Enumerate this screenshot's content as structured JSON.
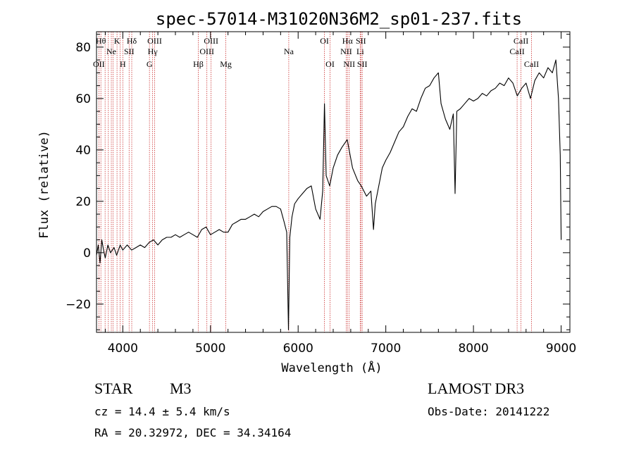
{
  "chart_data": {
    "type": "line",
    "title": "spec-57014-M31020N36M2_sp01-237.fits",
    "xlabel": "Wavelength (Å)",
    "ylabel": "Flux (relative)",
    "xlim": [
      3700,
      9100
    ],
    "ylim": [
      -31,
      86
    ],
    "xticks": [
      4000,
      5000,
      6000,
      7000,
      8000,
      9000
    ],
    "yticks": [
      -20,
      0,
      20,
      40,
      60,
      80
    ],
    "tick_labels": {
      "x": [
        "4000",
        "5000",
        "6000",
        "7000",
        "8000",
        "9000"
      ],
      "y": [
        "−20",
        "0",
        "20",
        "40",
        "60",
        "80"
      ]
    },
    "grid": false,
    "legend": "none",
    "colors": {
      "spectrum": "#000000",
      "lines": "#cc3333",
      "axes": "#000000"
    },
    "series": [
      {
        "values": [
          [
            3700,
            -1
          ],
          [
            3720,
            3
          ],
          [
            3740,
            -4
          ],
          [
            3760,
            5
          ],
          [
            3780,
            1
          ],
          [
            3800,
            -2
          ],
          [
            3830,
            3
          ],
          [
            3860,
            0
          ],
          [
            3900,
            2
          ],
          [
            3930,
            -1
          ],
          [
            3970,
            3
          ],
          [
            4000,
            1
          ],
          [
            4050,
            3
          ],
          [
            4100,
            1
          ],
          [
            4150,
            2
          ],
          [
            4200,
            3
          ],
          [
            4250,
            2
          ],
          [
            4300,
            4
          ],
          [
            4350,
            5
          ],
          [
            4400,
            3
          ],
          [
            4450,
            5
          ],
          [
            4500,
            6
          ],
          [
            4550,
            6
          ],
          [
            4600,
            7
          ],
          [
            4650,
            6
          ],
          [
            4700,
            7
          ],
          [
            4750,
            8
          ],
          [
            4800,
            7
          ],
          [
            4850,
            6
          ],
          [
            4900,
            9
          ],
          [
            4950,
            10
          ],
          [
            5000,
            7
          ],
          [
            5050,
            8
          ],
          [
            5100,
            9
          ],
          [
            5150,
            8
          ],
          [
            5200,
            8
          ],
          [
            5250,
            11
          ],
          [
            5300,
            12
          ],
          [
            5350,
            13
          ],
          [
            5400,
            13
          ],
          [
            5450,
            14
          ],
          [
            5500,
            15
          ],
          [
            5550,
            14
          ],
          [
            5600,
            16
          ],
          [
            5650,
            17
          ],
          [
            5700,
            18
          ],
          [
            5750,
            18
          ],
          [
            5800,
            17
          ],
          [
            5840,
            12
          ],
          [
            5870,
            8
          ],
          [
            5890,
            -30
          ],
          [
            5905,
            6
          ],
          [
            5930,
            14
          ],
          [
            5960,
            19
          ],
          [
            6000,
            21
          ],
          [
            6050,
            23
          ],
          [
            6100,
            25
          ],
          [
            6150,
            26
          ],
          [
            6200,
            17
          ],
          [
            6250,
            13
          ],
          [
            6280,
            24
          ],
          [
            6300,
            58
          ],
          [
            6320,
            30
          ],
          [
            6360,
            26
          ],
          [
            6400,
            33
          ],
          [
            6450,
            38
          ],
          [
            6500,
            41
          ],
          [
            6560,
            44
          ],
          [
            6620,
            33
          ],
          [
            6680,
            28
          ],
          [
            6720,
            26
          ],
          [
            6780,
            22
          ],
          [
            6830,
            24
          ],
          [
            6860,
            9
          ],
          [
            6880,
            19
          ],
          [
            6920,
            26
          ],
          [
            6960,
            33
          ],
          [
            7000,
            36
          ],
          [
            7050,
            39
          ],
          [
            7100,
            43
          ],
          [
            7150,
            47
          ],
          [
            7200,
            49
          ],
          [
            7250,
            53
          ],
          [
            7300,
            56
          ],
          [
            7350,
            55
          ],
          [
            7400,
            60
          ],
          [
            7450,
            64
          ],
          [
            7500,
            65
          ],
          [
            7550,
            68
          ],
          [
            7600,
            70
          ],
          [
            7630,
            58
          ],
          [
            7680,
            52
          ],
          [
            7730,
            48
          ],
          [
            7770,
            54
          ],
          [
            7790,
            23
          ],
          [
            7810,
            55
          ],
          [
            7850,
            56
          ],
          [
            7900,
            58
          ],
          [
            7950,
            60
          ],
          [
            8000,
            59
          ],
          [
            8050,
            60
          ],
          [
            8100,
            62
          ],
          [
            8150,
            61
          ],
          [
            8200,
            63
          ],
          [
            8250,
            64
          ],
          [
            8300,
            66
          ],
          [
            8350,
            65
          ],
          [
            8400,
            68
          ],
          [
            8450,
            66
          ],
          [
            8500,
            61
          ],
          [
            8550,
            64
          ],
          [
            8600,
            66
          ],
          [
            8650,
            60
          ],
          [
            8700,
            67
          ],
          [
            8750,
            70
          ],
          [
            8800,
            68
          ],
          [
            8850,
            72
          ],
          [
            8900,
            70
          ],
          [
            8940,
            75
          ],
          [
            8970,
            60
          ],
          [
            8990,
            38
          ],
          [
            9000,
            5
          ]
        ]
      }
    ],
    "lines": [
      {
        "wl": 3727,
        "label": "OII",
        "row": 3
      },
      {
        "wl": 3750,
        "label": "Hθ",
        "row": 1
      },
      {
        "wl": 3798,
        "label": "",
        "row": 0
      },
      {
        "wl": 3835,
        "label": "",
        "row": 0
      },
      {
        "wl": 3869,
        "label": "Ne",
        "row": 2
      },
      {
        "wl": 3889,
        "label": "",
        "row": 0
      },
      {
        "wl": 3934,
        "label": "K",
        "row": 1
      },
      {
        "wl": 3970,
        "label": "",
        "row": 0
      },
      {
        "wl": 4000,
        "label": "H",
        "row": 3
      },
      {
        "wl": 4072,
        "label": "SII",
        "row": 2
      },
      {
        "wl": 4102,
        "label": "Hδ",
        "row": 1
      },
      {
        "wl": 4304,
        "label": "G",
        "row": 3
      },
      {
        "wl": 4340,
        "label": "Hγ",
        "row": 2
      },
      {
        "wl": 4363,
        "label": "OIII",
        "row": 1
      },
      {
        "wl": 4861,
        "label": "Hβ",
        "row": 3
      },
      {
        "wl": 4959,
        "label": "OIII",
        "row": 2
      },
      {
        "wl": 5007,
        "label": "OIII",
        "row": 1
      },
      {
        "wl": 5175,
        "label": "Mg",
        "row": 3
      },
      {
        "wl": 5893,
        "label": "Na",
        "row": 2
      },
      {
        "wl": 6300,
        "label": "OI",
        "row": 1
      },
      {
        "wl": 6364,
        "label": "OI",
        "row": 3
      },
      {
        "wl": 6548,
        "label": "NII",
        "row": 2
      },
      {
        "wl": 6563,
        "label": "Hα",
        "row": 1
      },
      {
        "wl": 6583,
        "label": "NII",
        "row": 3
      },
      {
        "wl": 6708,
        "label": "Li",
        "row": 2
      },
      {
        "wl": 6716,
        "label": "SII",
        "row": 1
      },
      {
        "wl": 6731,
        "label": "SII",
        "row": 3
      },
      {
        "wl": 8498,
        "label": "CaII",
        "row": 2
      },
      {
        "wl": 8542,
        "label": "CaII",
        "row": 1
      },
      {
        "wl": 8662,
        "label": "CaII",
        "row": 3
      }
    ]
  },
  "info": {
    "object_class": "STAR",
    "subclass": "M3",
    "survey": "LAMOST DR3",
    "cz": "cz = 14.4 ± 5.4 km/s",
    "obs_date": "Obs-Date: 20141222",
    "radec": "RA =  20.32972, DEC =  34.34164"
  }
}
